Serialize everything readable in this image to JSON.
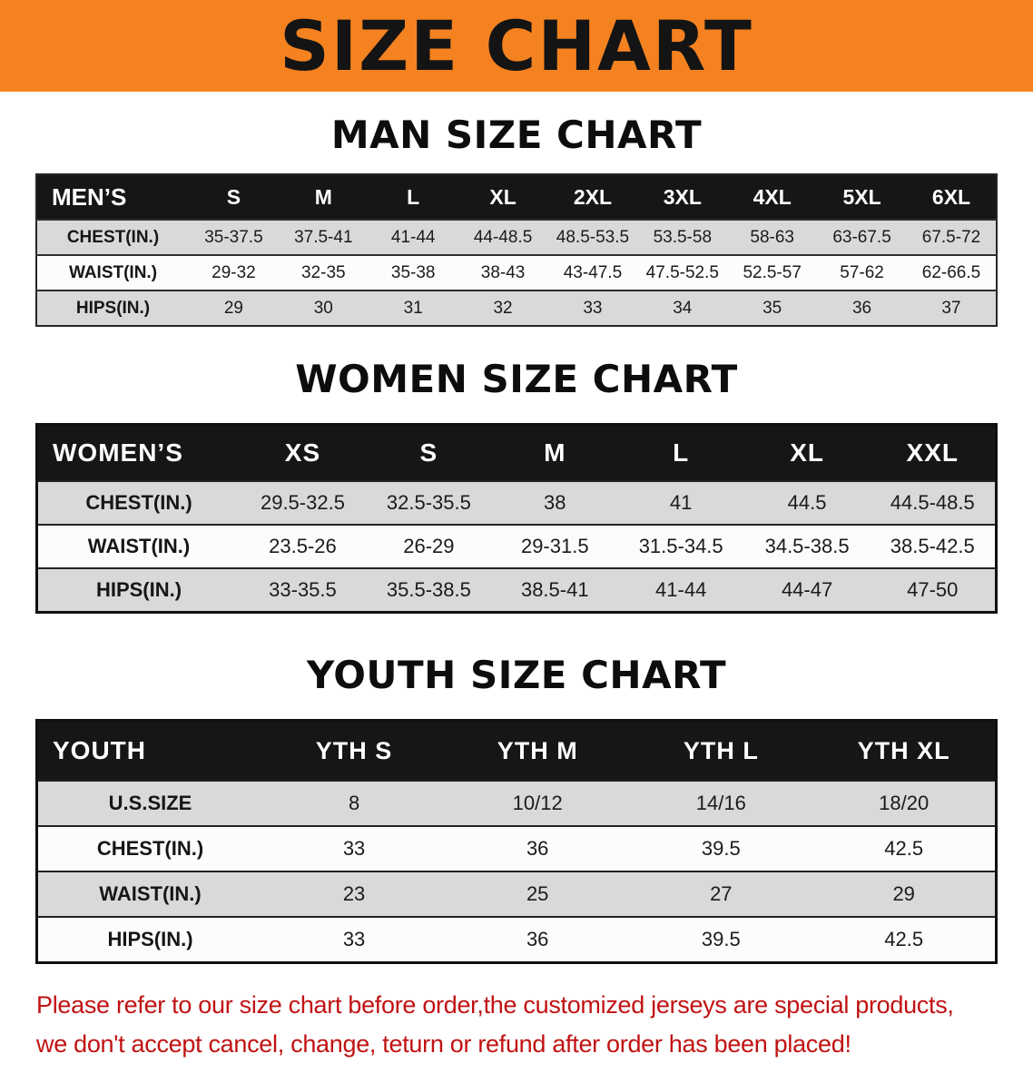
{
  "colors": {
    "accent": "#f58220",
    "table_header": "#161616",
    "row_shade": "#d9d9d9",
    "notice": "#c11212"
  },
  "banner": {
    "title": "SIZE CHART"
  },
  "sections": [
    {
      "heading": "MAN SIZE CHART",
      "table": {
        "header": [
          "MEN’S",
          "S",
          "M",
          "L",
          "XL",
          "2XL",
          "3XL",
          "4XL",
          "5XL",
          "6XL"
        ],
        "rows": [
          [
            "CHEST(IN.)",
            "35-37.5",
            "37.5-41",
            "41-44",
            "44-48.5",
            "48.5-53.5",
            "53.5-58",
            "58-63",
            "63-67.5",
            "67.5-72"
          ],
          [
            "WAIST(IN.)",
            "29-32",
            "32-35",
            "35-38",
            "38-43",
            "43-47.5",
            "47.5-52.5",
            "52.5-57",
            "57-62",
            "62-66.5"
          ],
          [
            "HIPS(IN.)",
            "29",
            "30",
            "31",
            "32",
            "33",
            "34",
            "35",
            "36",
            "37"
          ]
        ]
      }
    },
    {
      "heading": "WOMEN SIZE CHART",
      "table": {
        "header": [
          "WOMEN’S",
          "XS",
          "S",
          "M",
          "L",
          "XL",
          "XXL"
        ],
        "rows": [
          [
            "CHEST(IN.)",
            "29.5-32.5",
            "32.5-35.5",
            "38",
            "41",
            "44.5",
            "44.5-48.5"
          ],
          [
            "WAIST(IN.)",
            "23.5-26",
            "26-29",
            "29-31.5",
            "31.5-34.5",
            "34.5-38.5",
            "38.5-42.5"
          ],
          [
            "HIPS(IN.)",
            "33-35.5",
            "35.5-38.5",
            "38.5-41",
            "41-44",
            "44-47",
            "47-50"
          ]
        ]
      }
    },
    {
      "heading": "YOUTH SIZE CHART",
      "table": {
        "header": [
          "YOUTH",
          "YTH S",
          "YTH M",
          "YTH L",
          "YTH XL"
        ],
        "rows": [
          [
            "U.S.SIZE",
            "8",
            "10/12",
            "14/16",
            "18/20"
          ],
          [
            "CHEST(IN.)",
            "33",
            "36",
            "39.5",
            "42.5"
          ],
          [
            "WAIST(IN.)",
            "23",
            "25",
            "27",
            "29"
          ],
          [
            "HIPS(IN.)",
            "33",
            "36",
            "39.5",
            "42.5"
          ]
        ]
      }
    }
  ],
  "footer": {
    "lines": [
      "Please refer to our size chart before order,the customized jerseys are special products,",
      "we don't accept cancel, change, teturn or refund after order has been placed!"
    ]
  }
}
